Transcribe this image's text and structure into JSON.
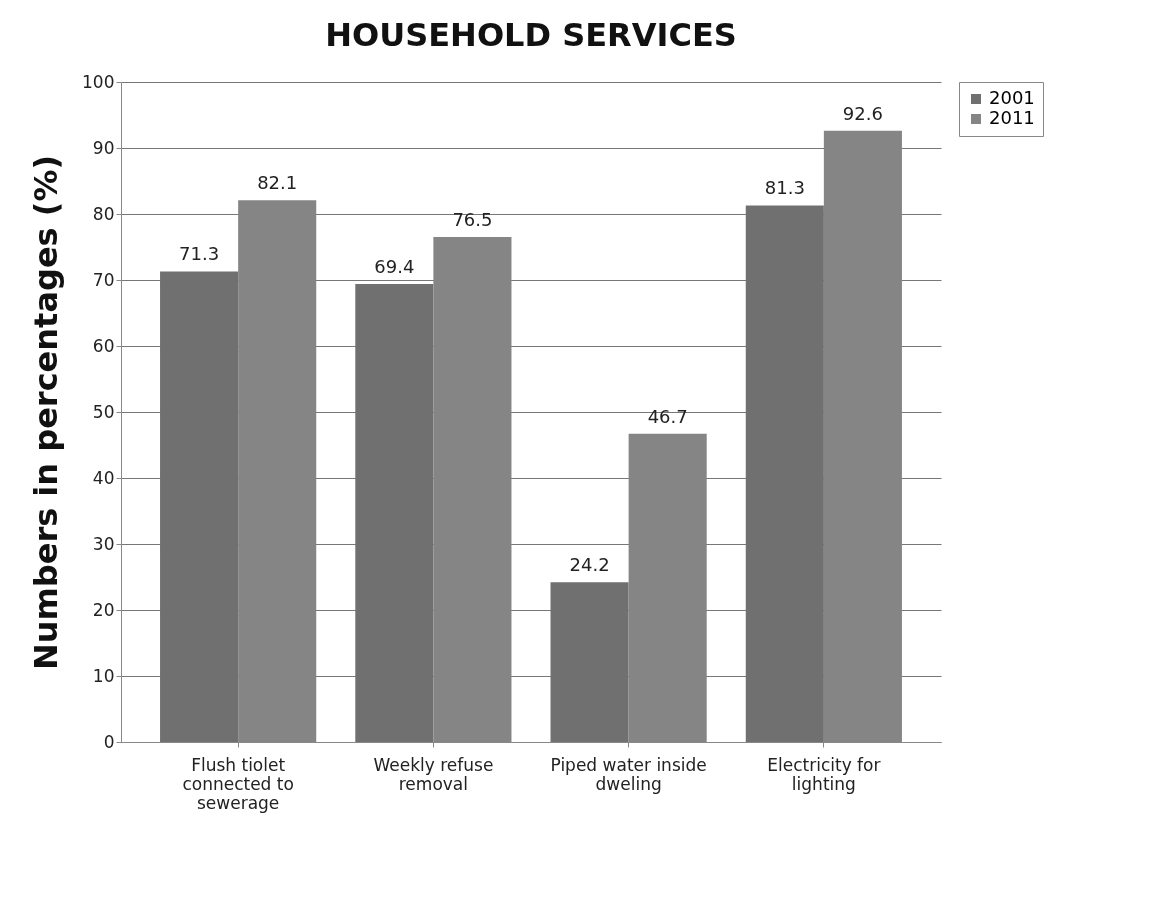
{
  "chart_data": {
    "type": "bar",
    "title": "HOUSEHOLD SERVICES",
    "ylabel": "Numbers in percentages (%)",
    "categories": [
      "Flush tiolet connected to sewerage",
      "Weekly refuse removal",
      "Piped water inside dweling",
      "Electricity for lighting"
    ],
    "series": [
      {
        "name": "2001",
        "color": "#707070",
        "values": [
          71.3,
          69.4,
          24.2,
          81.3
        ]
      },
      {
        "name": "2011",
        "color": "#858585",
        "values": [
          82.1,
          76.5,
          46.7,
          92.6
        ]
      }
    ],
    "ylim": [
      0,
      100
    ],
    "yticks": [
      0,
      10,
      20,
      30,
      40,
      50,
      60,
      70,
      80,
      90,
      100
    ],
    "grid": "y",
    "legend": "right",
    "data_labels": true
  }
}
